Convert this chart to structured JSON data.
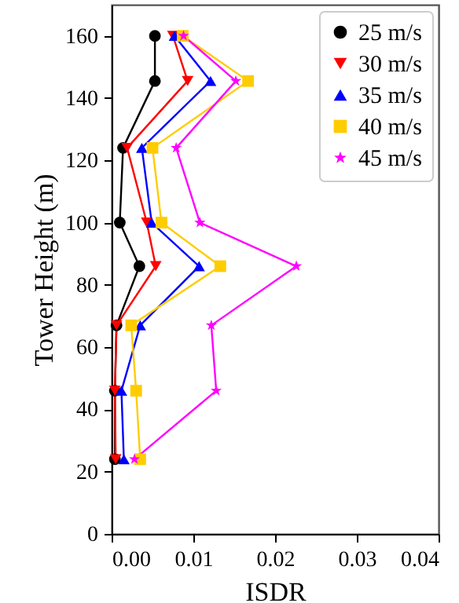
{
  "chart_data": {
    "type": "line",
    "xlabel": "ISDR",
    "ylabel": "Tower Height (m)",
    "xlim": [
      0,
      0.04
    ],
    "xticks": [
      {
        "value": 0,
        "label": "0.00"
      },
      0.01,
      0.02,
      0.03,
      0.04
    ],
    "ylim": [
      0,
      170
    ],
    "yticks": [
      0,
      20,
      40,
      60,
      80,
      100,
      120,
      140,
      160
    ],
    "legend": "top right",
    "grid": false,
    "line_style": "solid",
    "series": [
      {
        "name": "25 m/s",
        "color": "#000000",
        "marker": "circle",
        "x": [
          0.0053,
          0.0053,
          0.0014,
          0.001,
          0.0034,
          0.0006,
          0.0004,
          0.0004
        ],
        "values": [
          160,
          145.5,
          124,
          100,
          86,
          67,
          46,
          24
        ]
      },
      {
        "name": "30 m/s",
        "color": "#ff0000",
        "marker": "triangle-down",
        "x": [
          0.0075,
          0.0093,
          0.0019,
          0.0043,
          0.0054,
          0.0006,
          0.0004,
          0.0005
        ],
        "values": [
          160,
          145.5,
          124,
          100,
          86,
          67,
          46,
          24
        ]
      },
      {
        "name": "35 m/s",
        "color": "#0000ff",
        "marker": "triangle",
        "x": [
          0.0077,
          0.0121,
          0.0037,
          0.0049,
          0.0107,
          0.0035,
          0.0012,
          0.0015
        ],
        "values": [
          160,
          145.5,
          124,
          100,
          86,
          67,
          46,
          24
        ]
      },
      {
        "name": "40 m/s",
        "color": "#ffcc00",
        "marker": "square",
        "x": [
          0.0087,
          0.0167,
          0.005,
          0.0061,
          0.0133,
          0.0024,
          0.003,
          0.0035
        ],
        "values": [
          160,
          145.5,
          124,
          100,
          86,
          67,
          46,
          24
        ]
      },
      {
        "name": "45 m/s",
        "color": "#ff00ff",
        "marker": "star",
        "x": [
          0.0088,
          0.0152,
          0.0079,
          0.0108,
          0.0226,
          0.0122,
          0.0128,
          0.0028
        ],
        "values": [
          160,
          145.5,
          124,
          100,
          86,
          67,
          46,
          24
        ]
      }
    ]
  }
}
